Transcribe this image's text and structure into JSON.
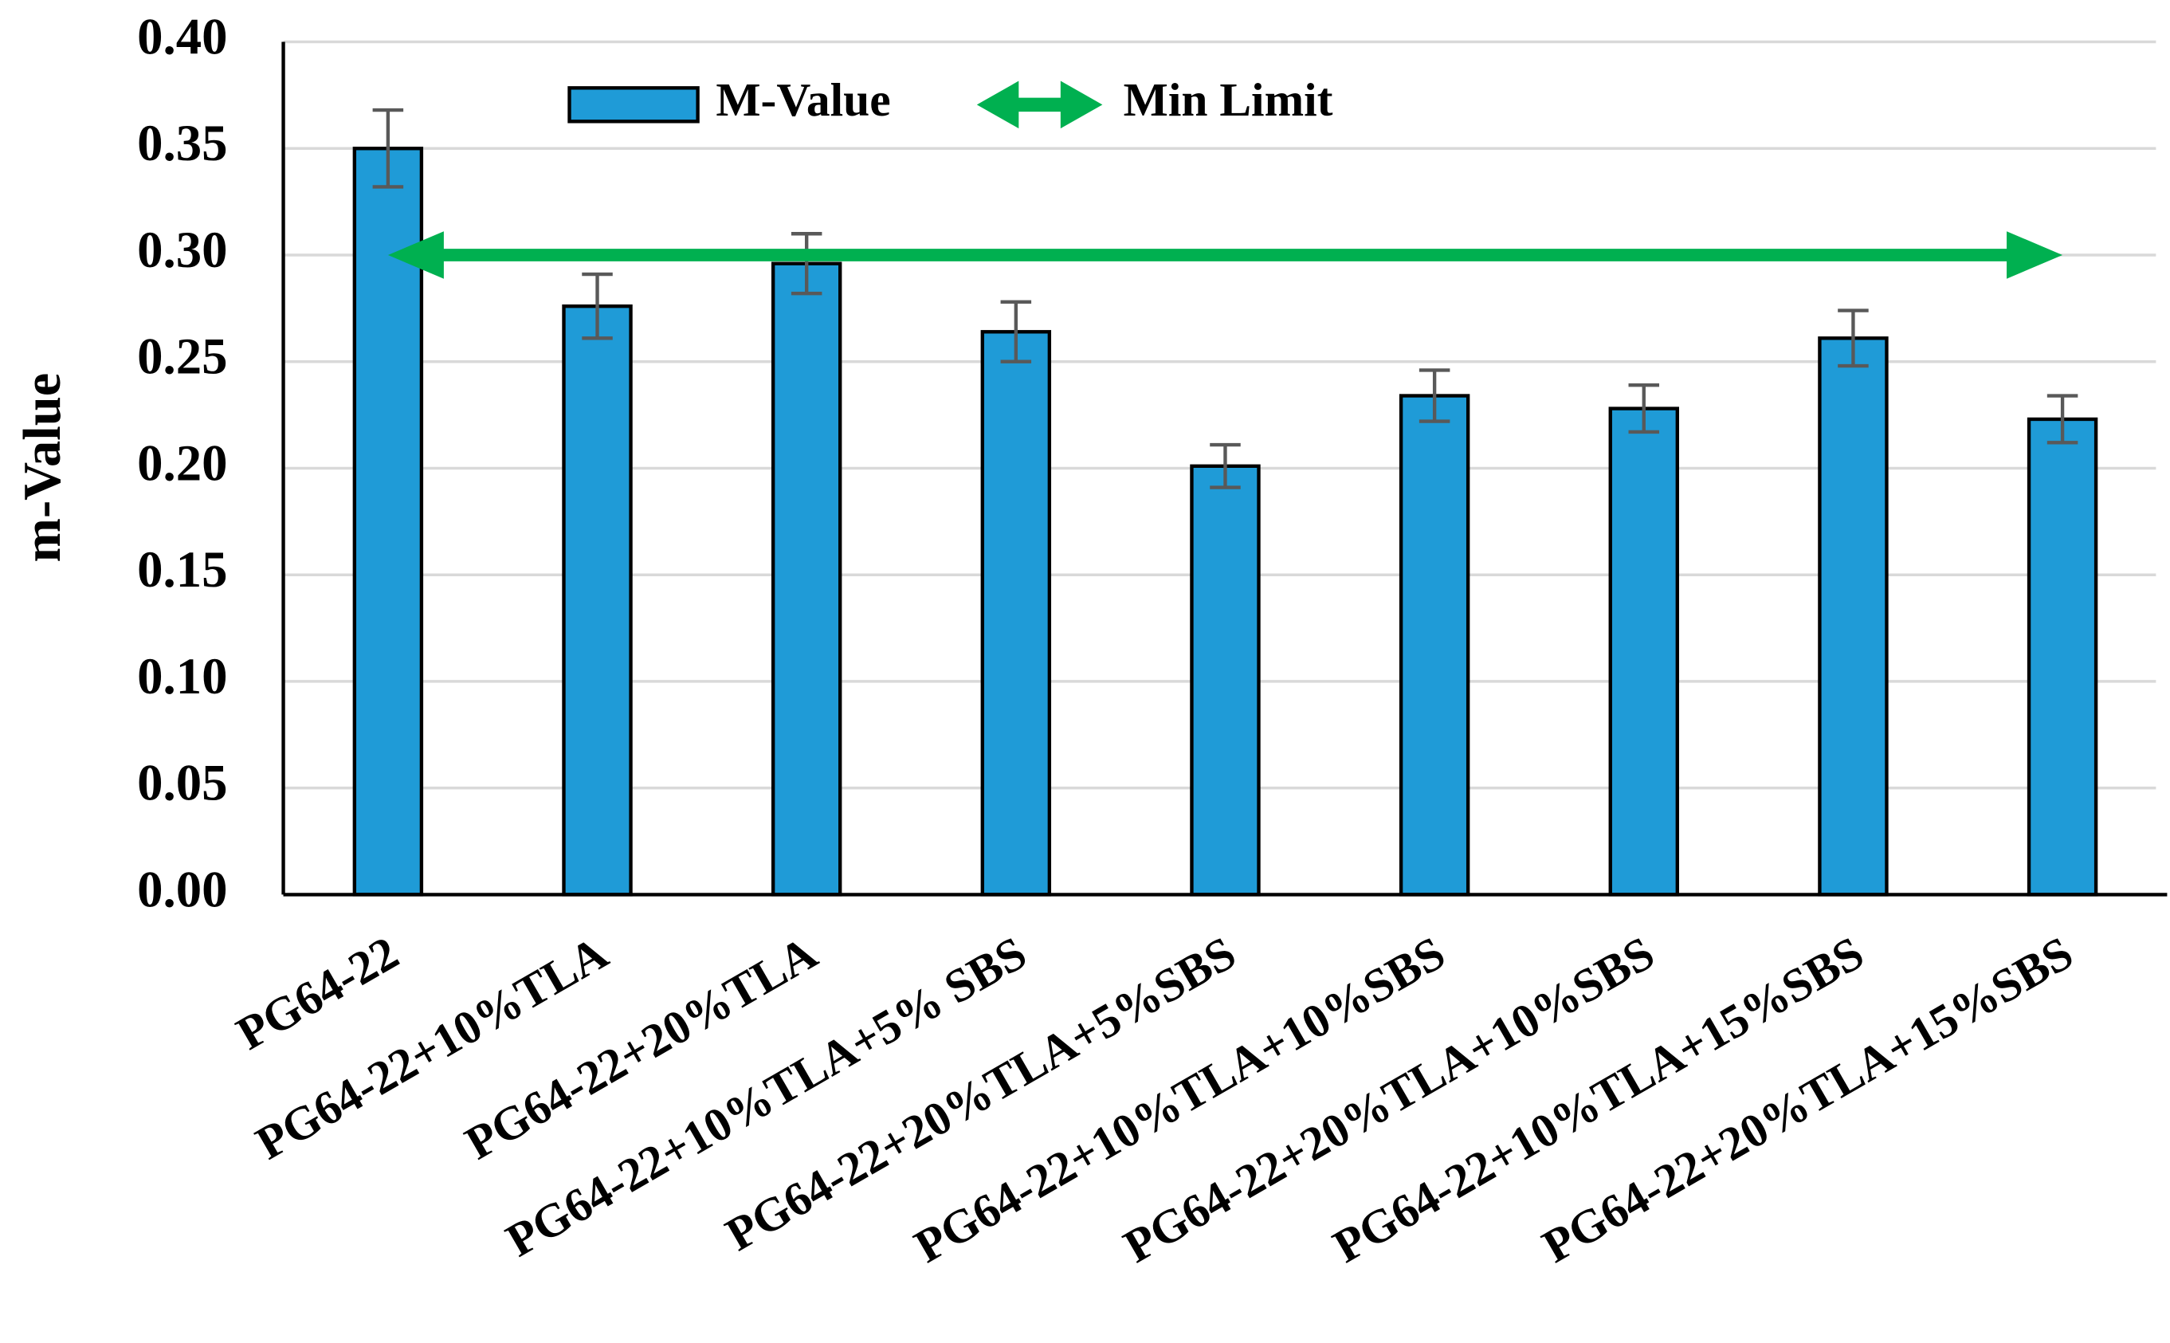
{
  "chart_data": {
    "type": "bar",
    "y_label": "m-Value",
    "categories": [
      "PG64-22",
      "PG64-22+10%TLA",
      "PG64-22+20%TLA",
      "PG64-22+10%TLA+5% SBS",
      "PG64-22+20%TLA+5%SBS",
      "PG64-22+10%TLA+10%SBS",
      "PG64-22+20%TLA+10%SBS",
      "PG64-22+10%TLA+15%SBS",
      "PG64-22+20%TLA+15%SBS"
    ],
    "series": [
      {
        "name": "M-Value",
        "color": "#1f9bd7",
        "values": [
          0.35,
          0.276,
          0.296,
          0.264,
          0.201,
          0.234,
          0.228,
          0.261,
          0.223
        ],
        "errors": [
          0.018,
          0.015,
          0.014,
          0.014,
          0.01,
          0.012,
          0.011,
          0.013,
          0.011
        ]
      }
    ],
    "min_limit": {
      "name": "Min Limit",
      "value": 0.3,
      "color": "#00b050"
    },
    "ylim": [
      0,
      0.4
    ],
    "yticks": [
      {
        "value": 0,
        "label": "0.00"
      },
      {
        "value": 0.05,
        "label": "0.05"
      },
      {
        "value": 0.1,
        "label": "0.10"
      },
      {
        "value": 0.15,
        "label": "0.15"
      },
      {
        "value": 0.2,
        "label": "0.20"
      },
      {
        "value": 0.25,
        "label": "0.25"
      },
      {
        "value": 0.3,
        "label": "0.30"
      },
      {
        "value": 0.35,
        "label": "0.35"
      },
      {
        "value": 0.4,
        "label": "0.40"
      }
    ],
    "grid": true
  }
}
